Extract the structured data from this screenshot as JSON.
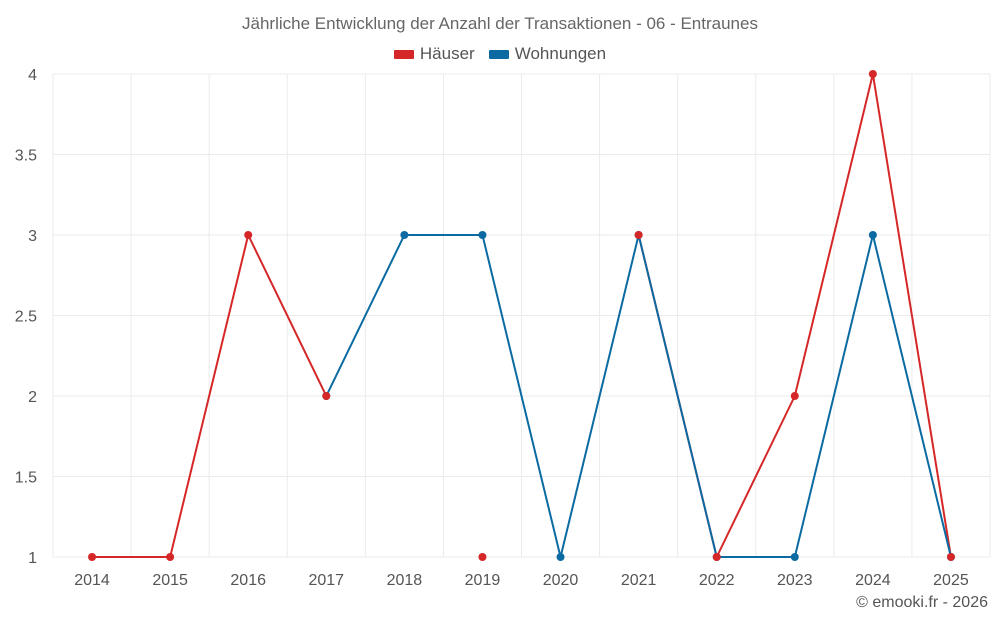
{
  "chart_data": {
    "type": "line",
    "title": "Jährliche Entwicklung der Anzahl der Transaktionen - 06 - Entraunes",
    "x": [
      "2014",
      "2015",
      "2016",
      "2017",
      "2018",
      "2019",
      "2020",
      "2021",
      "2022",
      "2023",
      "2024",
      "2025"
    ],
    "series": [
      {
        "name": "Häuser",
        "color": "#d62728",
        "values": [
          1,
          1,
          3,
          2,
          null,
          1,
          null,
          3,
          1,
          2,
          4,
          1
        ]
      },
      {
        "name": "Wohnungen",
        "color": "#0b6aa2",
        "values": [
          null,
          null,
          null,
          2,
          3,
          3,
          1,
          3,
          1,
          1,
          3,
          1
        ]
      }
    ],
    "ylim": [
      1,
      4
    ],
    "yticks": [
      "1",
      "1.5",
      "2",
      "2.5",
      "3",
      "3.5",
      "4"
    ],
    "grid": true,
    "legend": "top-center"
  },
  "credit": "© emooki.fr - 2026"
}
